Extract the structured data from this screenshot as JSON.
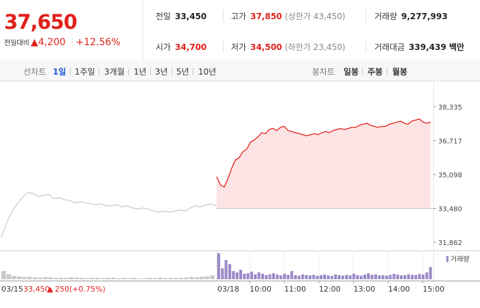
{
  "summary": {
    "price": "37,650",
    "change_label": "전일대비",
    "change_arrow": "▲",
    "change_amount": "4,200",
    "change_pct": "+12.56%",
    "stats": {
      "prev_close": {
        "label": "전일",
        "value": "33,450"
      },
      "high": {
        "label": "고가",
        "value": "37,850",
        "sub": "(상한가 43,450)"
      },
      "volume": {
        "label": "거래량",
        "value": "9,277,993"
      },
      "open": {
        "label": "시가",
        "value": "34,700"
      },
      "low": {
        "label": "저가",
        "value": "34,500",
        "sub": "(하한가 23,450)"
      },
      "turnover": {
        "label": "거래대금",
        "value": "339,439 백만"
      }
    }
  },
  "period_bar": {
    "line_chart_label": "선차트",
    "line_periods": [
      "1일",
      "1주일",
      "3개월",
      "1년",
      "3년",
      "5년",
      "10년"
    ],
    "active_period": "1일",
    "candle_chart_label": "봉차트",
    "candle_periods": [
      "일봉",
      "주봉",
      "월봉"
    ]
  },
  "colors": {
    "up": "#e0211d",
    "fill": "#fde4e4",
    "prev_day_line": "#c8c8c8",
    "volume_today": "#9b8bc8",
    "volume_prev": "#c8c8c8"
  },
  "chart_data": {
    "type": "line",
    "ylim": [
      31862,
      38335
    ],
    "y_ticks": [
      "38,335",
      "36,717",
      "35,098",
      "33,480",
      "31,862"
    ],
    "y_tick_values": [
      38335,
      36717,
      35098,
      33480,
      31862
    ],
    "baseline": 33480,
    "prev_day": {
      "date": "03/15",
      "series": [
        32100,
        32800,
        33300,
        33700,
        34000,
        34250,
        34200,
        34050,
        34100,
        34150,
        33950,
        34000,
        33900,
        33850,
        33750,
        33800,
        33750,
        33700,
        33650,
        33700,
        33600,
        33600,
        33650,
        33550,
        33600,
        33500,
        33450,
        33500,
        33450,
        33350,
        33300,
        33350,
        33300,
        33350,
        33400,
        33350,
        33500,
        33600,
        33550,
        33650,
        33700,
        33600
      ]
    },
    "today": {
      "date": "03/18",
      "series": [
        35000,
        34600,
        34500,
        34900,
        35400,
        35800,
        35900,
        36200,
        36300,
        36650,
        36750,
        36900,
        37100,
        37050,
        37250,
        37300,
        37200,
        37350,
        37400,
        37200,
        37150,
        37100,
        37050,
        37000,
        36950,
        37000,
        37050,
        37000,
        37100,
        37150,
        37100,
        37200,
        37250,
        37300,
        37250,
        37300,
        37350,
        37350,
        37450,
        37500,
        37550,
        37450,
        37400,
        37350,
        37400,
        37400,
        37500,
        37550,
        37600,
        37650,
        37550,
        37500,
        37650,
        37700,
        37750,
        37600,
        37550,
        37600
      ]
    },
    "x_ticks": [
      "10:00",
      "11:00",
      "12:00",
      "13:00",
      "14:00",
      "15:00"
    ],
    "footer": {
      "date_prev": "03/15",
      "prev_close": "33,450",
      "arrow": "▲",
      "change": "250",
      "change_pct": "(+0.75%)",
      "date_today": "03/18"
    },
    "volume_legend": "거래량",
    "volume_today": [
      95,
      40,
      70,
      55,
      30,
      25,
      35,
      20,
      22,
      28,
      18,
      25,
      20,
      15,
      18,
      22,
      17,
      14,
      20,
      16,
      30,
      15,
      13,
      18,
      15,
      14,
      16,
      12,
      15,
      17,
      14,
      12,
      18,
      15,
      13,
      16,
      14,
      20,
      15,
      13,
      17,
      22,
      16,
      18,
      14,
      15,
      13,
      16,
      20,
      17,
      14,
      15,
      18,
      16,
      15,
      19,
      17,
      25,
      45
    ],
    "volume_prev": [
      30,
      18,
      12,
      10,
      8,
      9,
      7,
      6,
      8,
      7,
      5,
      6,
      5,
      7,
      6,
      5,
      4,
      6,
      5,
      4,
      5,
      6,
      4,
      5,
      4,
      5,
      3,
      4,
      5,
      4,
      6,
      4,
      5,
      4,
      5,
      6,
      8,
      7,
      9,
      10,
      14
    ]
  }
}
